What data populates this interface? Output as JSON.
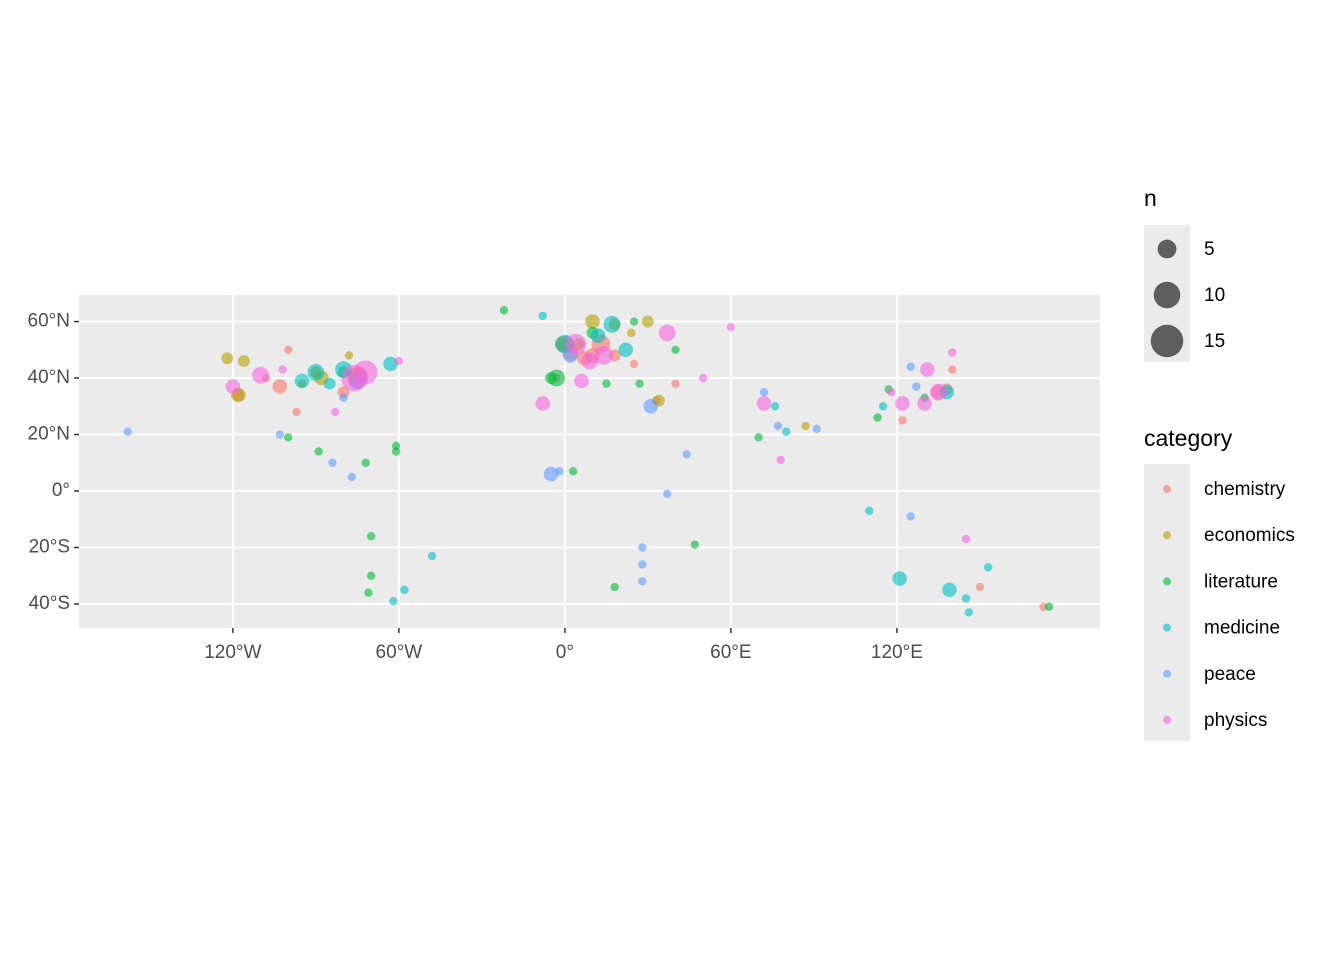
{
  "chart_data": {
    "type": "scatter",
    "xlim": [
      -175.6,
      193.4
    ],
    "ylim": [
      -48.5,
      69.4
    ],
    "xticks": [
      {
        "value": -120,
        "label": "120°W"
      },
      {
        "value": -60,
        "label": "60°W"
      },
      {
        "value": 0,
        "label": "0°"
      },
      {
        "value": 60,
        "label": "60°E"
      },
      {
        "value": 120,
        "label": "120°E"
      }
    ],
    "yticks": [
      {
        "value": -40,
        "label": "40°S"
      },
      {
        "value": -20,
        "label": "20°S"
      },
      {
        "value": 0,
        "label": "0°"
      },
      {
        "value": 20,
        "label": "20°N"
      },
      {
        "value": 40,
        "label": "40°N"
      },
      {
        "value": 60,
        "label": "60°N"
      }
    ],
    "grid": true,
    "alpha": 0.6,
    "size_legend": {
      "title": "n",
      "breaks": [
        5,
        10,
        15
      ]
    },
    "color_legend_title": "category",
    "series": [
      {
        "name": "chemistry",
        "color": "#F8766D",
        "x": [
          -100,
          -103,
          -108,
          -97,
          -80,
          0,
          13,
          10,
          18,
          33,
          40,
          138,
          140,
          135,
          122,
          150,
          173,
          -3,
          25,
          -75,
          7,
          2,
          -118
        ],
        "values": [
          50,
          37,
          40,
          28,
          35,
          52,
          52,
          48,
          48,
          32,
          38,
          36,
          43,
          35,
          25,
          -34,
          -41,
          40,
          45,
          40,
          47,
          49,
          34
        ],
        "sizes": [
          1,
          3,
          1,
          1,
          2,
          4,
          5,
          3,
          2,
          1,
          1,
          2,
          1,
          3,
          1,
          1,
          1,
          1,
          1,
          6,
          3,
          4,
          2
        ]
      },
      {
        "name": "economics",
        "color": "#B79F00",
        "x": [
          -122,
          -116,
          -118,
          -90,
          -78,
          -88,
          -75,
          -1,
          10,
          18,
          5,
          30,
          34,
          87,
          -95,
          24
        ],
        "values": [
          47,
          46,
          34,
          42,
          48,
          40,
          41,
          52,
          60,
          59,
          52,
          60,
          32,
          23,
          38,
          56
        ],
        "sizes": [
          2,
          2,
          3,
          2,
          1,
          3,
          4,
          3,
          3,
          2,
          2,
          2,
          2,
          1,
          1,
          1
        ]
      },
      {
        "name": "literature",
        "color": "#00BA38",
        "x": [
          -22,
          -100,
          -89,
          -72,
          -61,
          -61,
          -70,
          -70,
          -71,
          3,
          18,
          47,
          10,
          25,
          -5,
          -3,
          15,
          40,
          70,
          117,
          113,
          130,
          175,
          27,
          -80
        ],
        "values": [
          64,
          19,
          14,
          10,
          16,
          14,
          -16,
          -30,
          -36,
          7,
          -34,
          -19,
          56,
          60,
          40,
          40,
          38,
          50,
          19,
          36,
          26,
          33,
          -41,
          38,
          42
        ],
        "sizes": [
          1,
          1,
          1,
          1,
          1,
          1,
          1,
          1,
          1,
          1,
          1,
          1,
          2,
          1,
          2,
          4,
          1,
          1,
          1,
          1,
          1,
          1,
          1,
          1,
          2
        ]
      },
      {
        "name": "medicine",
        "color": "#00BFC4",
        "x": [
          -80,
          -90,
          -95,
          -63,
          -48,
          -58,
          -62,
          -8,
          17,
          12,
          22,
          0,
          110,
          121,
          139,
          145,
          153,
          146,
          138,
          76,
          80,
          115,
          -85
        ],
        "values": [
          43,
          42,
          39,
          45,
          -23,
          -35,
          -39,
          62,
          59,
          55,
          50,
          52,
          -7,
          -31,
          -35,
          -38,
          -27,
          -43,
          35,
          30,
          21,
          30,
          38
        ],
        "sizes": [
          4,
          4,
          3,
          3,
          1,
          1,
          1,
          1,
          4,
          3,
          3,
          5,
          1,
          3,
          3,
          1,
          1,
          1,
          3,
          1,
          1,
          1,
          2
        ]
      },
      {
        "name": "peace",
        "color": "#619CFF",
        "x": [
          -158,
          -103,
          -84,
          -77,
          -5,
          -2,
          37,
          44,
          28,
          28,
          28,
          31,
          72,
          77,
          91,
          125,
          125,
          127,
          -75,
          2,
          -80
        ],
        "values": [
          21,
          20,
          10,
          5,
          6,
          7,
          -1,
          13,
          -20,
          -26,
          -32,
          30,
          35,
          23,
          22,
          -9,
          44,
          37,
          39,
          48,
          33
        ],
        "sizes": [
          1,
          1,
          1,
          1,
          3,
          1,
          1,
          1,
          1,
          1,
          1,
          3,
          1,
          1,
          1,
          1,
          1,
          1,
          4,
          3,
          1
        ]
      },
      {
        "name": "physics",
        "color": "#F564E3",
        "x": [
          -120,
          -110,
          -102,
          -76,
          -72,
          -83,
          -60,
          -8,
          6,
          9,
          14,
          4,
          60,
          50,
          72,
          78,
          131,
          130,
          122,
          135,
          140,
          145,
          37,
          118
        ],
        "values": [
          37,
          41,
          43,
          40,
          42,
          28,
          46,
          31,
          39,
          46,
          48,
          52,
          58,
          40,
          31,
          11,
          43,
          31,
          31,
          35,
          49,
          -17,
          56,
          35
        ],
        "sizes": [
          3,
          4,
          1,
          10,
          8,
          1,
          1,
          3,
          3,
          4,
          5,
          6,
          1,
          1,
          3,
          1,
          3,
          3,
          3,
          4,
          1,
          1,
          4,
          1
        ]
      }
    ]
  }
}
